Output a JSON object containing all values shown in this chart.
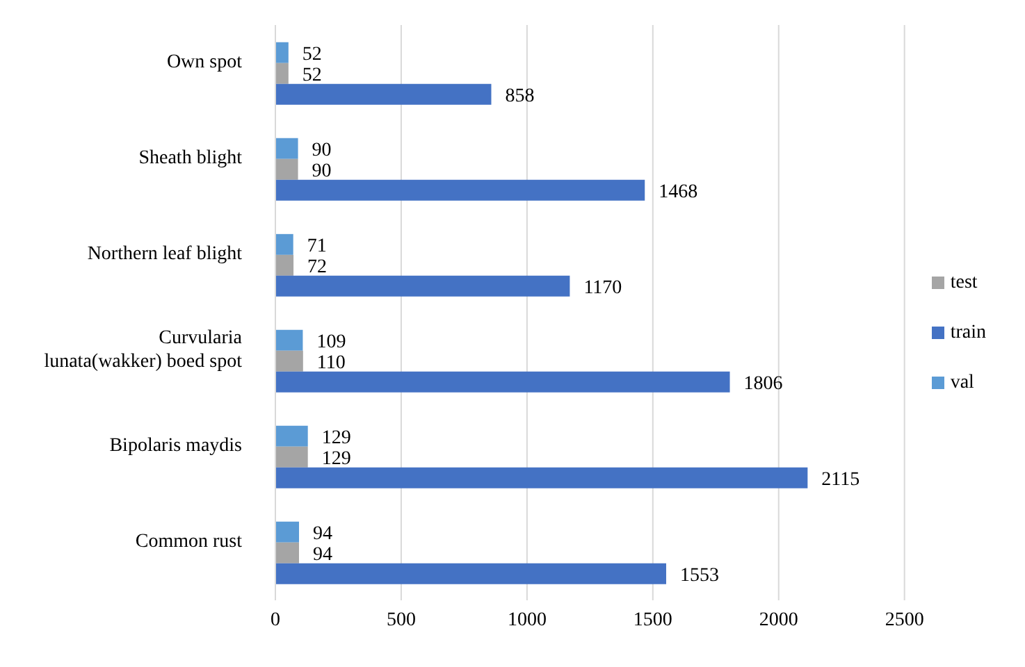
{
  "chart_data": {
    "type": "bar",
    "orientation": "horizontal",
    "categories": [
      "Own spot",
      "Sheath blight",
      "Northern leaf blight",
      "Curvularia lunata(wakker) boed spot",
      "Bipolaris maydis",
      "Common rust"
    ],
    "series": [
      {
        "name": "val",
        "color": "#5b9bd5",
        "values": [
          52,
          90,
          71,
          109,
          129,
          94
        ]
      },
      {
        "name": "test",
        "color": "#a5a5a5",
        "values": [
          52,
          90,
          72,
          110,
          129,
          94
        ]
      },
      {
        "name": "train",
        "color": "#4472c4",
        "values": [
          858,
          1468,
          1170,
          1806,
          2115,
          1553
        ]
      }
    ],
    "xlim": [
      0,
      2500
    ],
    "xticks": [
      0,
      500,
      1000,
      1500,
      2000,
      2500
    ],
    "grid": "x",
    "legend": "right",
    "data_labels": true
  }
}
